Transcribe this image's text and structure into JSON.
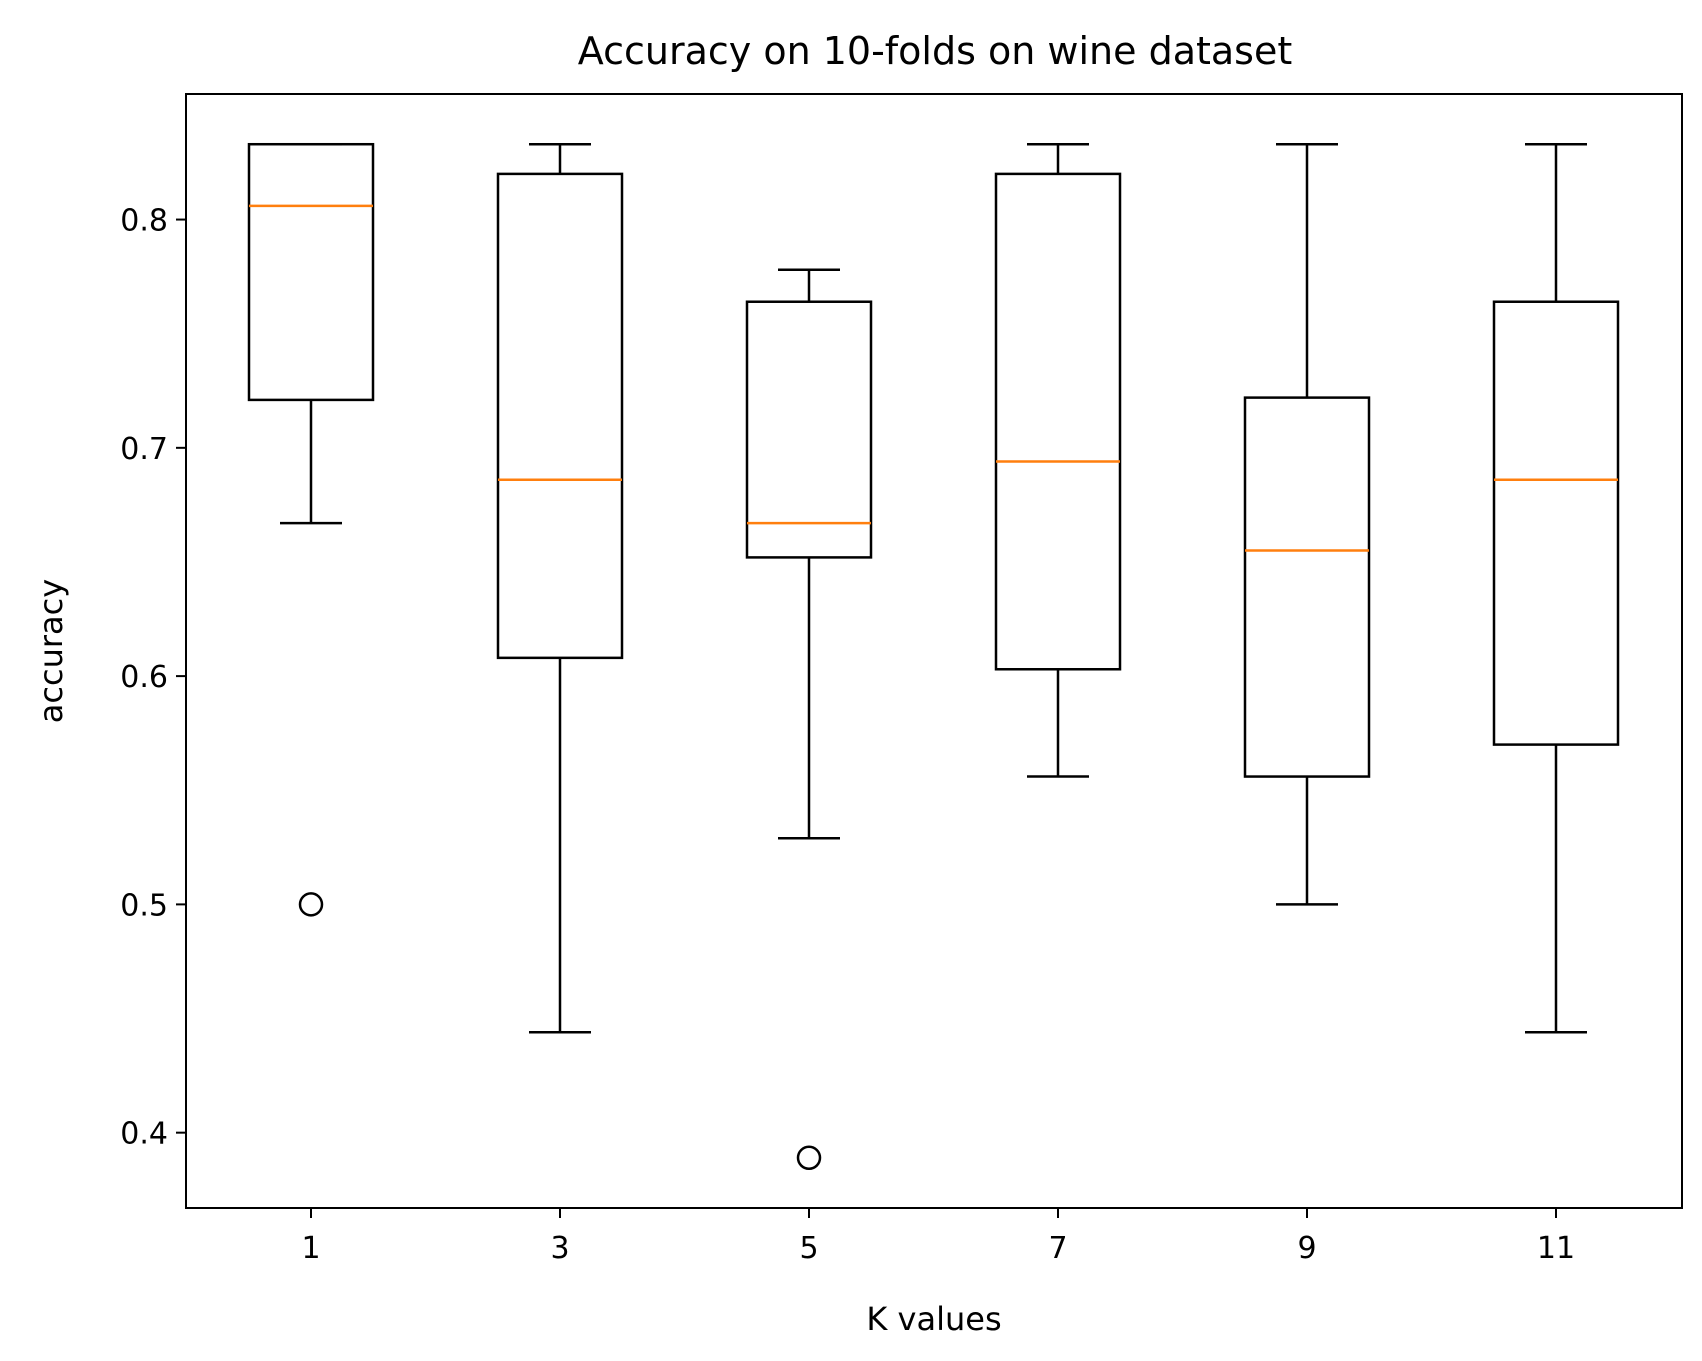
{
  "chart_data": {
    "type": "box",
    "title": "Accuracy on 10-folds on wine dataset",
    "xlabel": "K values",
    "ylabel": "accuracy",
    "ylim": [
      0.367,
      0.855
    ],
    "yticks": [
      0.4,
      0.5,
      0.6,
      0.7,
      0.8
    ],
    "ytick_labels": [
      "0.4",
      "0.5",
      "0.6",
      "0.7",
      "0.8"
    ],
    "categories": [
      "1",
      "3",
      "5",
      "7",
      "9",
      "11"
    ],
    "boxes": [
      {
        "category": "1",
        "whisker_low": 0.667,
        "q1": 0.721,
        "median": 0.806,
        "q3": 0.833,
        "whisker_high": 0.833,
        "outliers": [
          0.5
        ]
      },
      {
        "category": "3",
        "whisker_low": 0.444,
        "q1": 0.608,
        "median": 0.686,
        "q3": 0.82,
        "whisker_high": 0.833,
        "outliers": []
      },
      {
        "category": "5",
        "whisker_low": 0.529,
        "q1": 0.652,
        "median": 0.667,
        "q3": 0.764,
        "whisker_high": 0.778,
        "outliers": [
          0.389
        ]
      },
      {
        "category": "7",
        "whisker_low": 0.556,
        "q1": 0.603,
        "median": 0.694,
        "q3": 0.82,
        "whisker_high": 0.833,
        "outliers": []
      },
      {
        "category": "9",
        "whisker_low": 0.5,
        "q1": 0.556,
        "median": 0.655,
        "q3": 0.722,
        "whisker_high": 0.833,
        "outliers": []
      },
      {
        "category": "11",
        "whisker_low": 0.444,
        "q1": 0.57,
        "median": 0.686,
        "q3": 0.764,
        "whisker_high": 0.833,
        "outliers": []
      }
    ],
    "colors": {
      "box": "#000000",
      "median": "#ff7f0e",
      "outlier": "#000000"
    },
    "grid": false
  }
}
